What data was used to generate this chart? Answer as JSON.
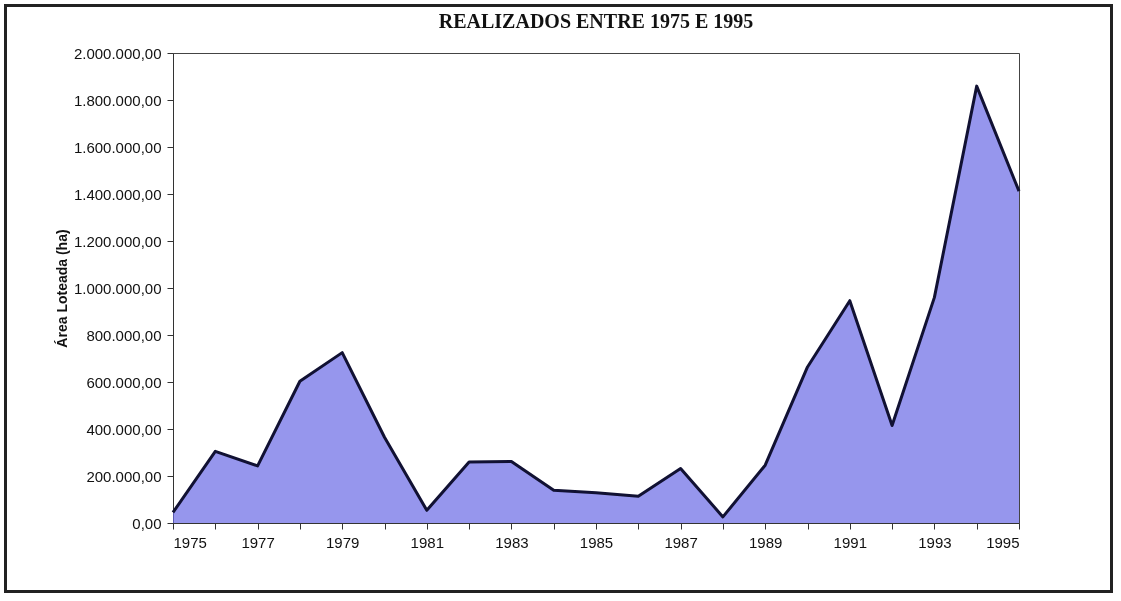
{
  "chart_data": {
    "type": "area",
    "title": "REALIZADOS ENTRE 1975 E 1995",
    "ylabel": "Área Loteada (ha)",
    "x": [
      1975,
      1976,
      1977,
      1978,
      1979,
      1980,
      1981,
      1982,
      1983,
      1984,
      1985,
      1986,
      1987,
      1988,
      1989,
      1990,
      1991,
      1992,
      1993,
      1994,
      1995
    ],
    "series": [
      {
        "color": "#6a6ae6",
        "values": [
          45000,
          305000,
          243000,
          603000,
          725000,
          365000,
          54000,
          260000,
          262000,
          139000,
          129000,
          114000,
          232000,
          26000,
          246000,
          664000,
          946000,
          415000,
          960000,
          1859000,
          1412000
        ]
      }
    ],
    "xlim": [
      1975,
      1995
    ],
    "xticks": [
      1975,
      {
        "value": 1976,
        "label": null
      },
      1977,
      {
        "value": 1978,
        "label": null
      },
      1979,
      {
        "value": 1980,
        "label": null
      },
      1981,
      {
        "value": 1982,
        "label": null
      },
      1983,
      {
        "value": 1984,
        "label": null
      },
      1985,
      {
        "value": 1986,
        "label": null
      },
      1987,
      {
        "value": 1988,
        "label": null
      },
      1989,
      {
        "value": 1990,
        "label": null
      },
      1991,
      {
        "value": 1992,
        "label": null
      },
      1993,
      {
        "value": 1994,
        "label": null
      },
      1995
    ],
    "ylim": [
      0,
      2000000
    ],
    "yticks": [
      {
        "value": 0,
        "label": "0,00"
      },
      {
        "value": 200000,
        "label": "200.000,00"
      },
      {
        "value": 400000,
        "label": "400.000,00"
      },
      {
        "value": 600000,
        "label": "600.000,00"
      },
      {
        "value": 800000,
        "label": "800.000,00"
      },
      {
        "value": 1000000,
        "label": "1.000.000,00"
      },
      {
        "value": 1200000,
        "label": "1.200.000,00"
      },
      {
        "value": 1400000,
        "label": "1.400.000,00"
      },
      {
        "value": 1600000,
        "label": "1.600.000,00"
      },
      {
        "value": 1800000,
        "label": "1.800.000,00"
      },
      {
        "value": 2000000,
        "label": "2.000.000,00"
      }
    ],
    "grid": false
  }
}
